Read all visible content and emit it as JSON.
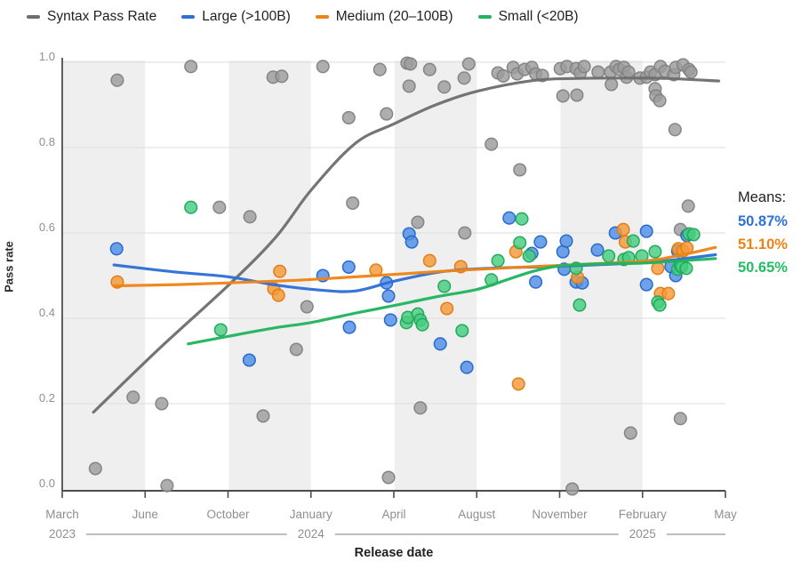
{
  "legend": {
    "items": [
      {
        "label": "Syntax Pass Rate",
        "color": "#6e6e6e"
      },
      {
        "label": "Large (>100B)",
        "color": "#2e6fd6"
      },
      {
        "label": "Medium (20–100B)",
        "color": "#ee8416"
      },
      {
        "label": "Small (<20B)",
        "color": "#21b45f"
      }
    ]
  },
  "means": {
    "title": "Means:",
    "values": [
      {
        "text": "50.87%",
        "color": "#2b72d7"
      },
      {
        "text": "51.10%",
        "color": "#f08114"
      },
      {
        "text": "50.65%",
        "color": "#22bd64"
      }
    ]
  },
  "chart_data": {
    "type": "scatter",
    "xlabel": "Release date",
    "ylabel": "Pass rate",
    "x_ticks": [
      "March",
      "June",
      "October",
      "January",
      "April",
      "August",
      "November",
      "February",
      "May"
    ],
    "x_years": [
      {
        "label": "2023",
        "tick": 0
      },
      {
        "label": "2024",
        "tick": 3
      },
      {
        "label": "2025",
        "tick": 7
      }
    ],
    "y_ticks": [
      "0.0",
      "0.2",
      "0.4",
      "0.6",
      "0.8",
      "1.0"
    ],
    "ylim": [
      0,
      1
    ],
    "x_unit_note": "x is fraction of axis span March 2023 to May 2025",
    "background_bands": "alternating light stripes between tick pairs 0-1, 2-3, 4-5, 6-7",
    "series": [
      {
        "name": "Syntax Pass Rate",
        "dot_fill": "#9c9c9c",
        "dot_stroke": "#828282",
        "line_color": "#6e6e6e",
        "points": [
          [
            0.05,
            0.048
          ],
          [
            0.083,
            0.958
          ],
          [
            0.107,
            0.215
          ],
          [
            0.15,
            0.2
          ],
          [
            0.158,
            0.008
          ],
          [
            0.194,
            0.99
          ],
          [
            0.237,
            0.66
          ],
          [
            0.283,
            0.638
          ],
          [
            0.303,
            0.171
          ],
          [
            0.318,
            0.965
          ],
          [
            0.331,
            0.967
          ],
          [
            0.353,
            0.327
          ],
          [
            0.369,
            0.427
          ],
          [
            0.393,
            0.99
          ],
          [
            0.432,
            0.87
          ],
          [
            0.438,
            0.67
          ],
          [
            0.479,
            0.983
          ],
          [
            0.489,
            0.879
          ],
          [
            0.492,
            0.027
          ],
          [
            0.52,
            0.998
          ],
          [
            0.523,
            0.944
          ],
          [
            0.525,
            0.996
          ],
          [
            0.536,
            0.625
          ],
          [
            0.54,
            0.19
          ],
          [
            0.554,
            0.983
          ],
          [
            0.576,
            0.942
          ],
          [
            0.606,
            0.963
          ],
          [
            0.607,
            0.6
          ],
          [
            0.613,
            0.996
          ],
          [
            0.647,
            0.808
          ],
          [
            0.657,
            0.975
          ],
          [
            0.665,
            0.968
          ],
          [
            0.68,
            0.988
          ],
          [
            0.686,
            0.973
          ],
          [
            0.69,
            0.748
          ],
          [
            0.697,
            0.983
          ],
          [
            0.708,
            0.988
          ],
          [
            0.714,
            0.973
          ],
          [
            0.724,
            0.969
          ],
          [
            0.751,
            0.985
          ],
          [
            0.755,
            0.921
          ],
          [
            0.761,
            0.99
          ],
          [
            0.769,
            0.0
          ],
          [
            0.775,
            0.985
          ],
          [
            0.776,
            0.923
          ],
          [
            0.781,
            0.975
          ],
          [
            0.787,
            0.99
          ],
          [
            0.808,
            0.977
          ],
          [
            0.827,
            0.977
          ],
          [
            0.828,
            0.948
          ],
          [
            0.835,
            0.99
          ],
          [
            0.84,
            0.983
          ],
          [
            0.847,
            0.988
          ],
          [
            0.851,
            0.965
          ],
          [
            0.854,
            0.977
          ],
          [
            0.857,
            0.131
          ],
          [
            0.871,
            0.963
          ],
          [
            0.881,
            0.965
          ],
          [
            0.887,
            0.977
          ],
          [
            0.894,
            0.938
          ],
          [
            0.894,
            0.971
          ],
          [
            0.895,
            0.921
          ],
          [
            0.901,
            0.91
          ],
          [
            0.902,
            0.99
          ],
          [
            0.909,
            0.979
          ],
          [
            0.922,
            0.971
          ],
          [
            0.924,
            0.842
          ],
          [
            0.925,
            0.988
          ],
          [
            0.932,
            0.608
          ],
          [
            0.932,
            0.165
          ],
          [
            0.936,
            0.994
          ],
          [
            0.944,
            0.663
          ],
          [
            0.945,
            0.983
          ],
          [
            0.948,
            0.977
          ]
        ],
        "trend": [
          [
            0.047,
            0.18
          ],
          [
            0.147,
            0.33
          ],
          [
            0.251,
            0.478
          ],
          [
            0.322,
            0.59
          ],
          [
            0.375,
            0.7
          ],
          [
            0.442,
            0.81
          ],
          [
            0.501,
            0.856
          ],
          [
            0.563,
            0.9
          ],
          [
            0.626,
            0.932
          ],
          [
            0.71,
            0.957
          ],
          [
            0.777,
            0.962
          ],
          [
            0.845,
            0.963
          ],
          [
            0.911,
            0.962
          ],
          [
            0.99,
            0.956
          ]
        ]
      },
      {
        "name": "Large (>100B)",
        "dot_fill": "#4e8fe8",
        "dot_stroke": "#2565c8",
        "line_color": "#2e6fd6",
        "points": [
          [
            0.082,
            0.563
          ],
          [
            0.282,
            0.302
          ],
          [
            0.393,
            0.5
          ],
          [
            0.432,
            0.52
          ],
          [
            0.433,
            0.379
          ],
          [
            0.489,
            0.483
          ],
          [
            0.492,
            0.452
          ],
          [
            0.495,
            0.396
          ],
          [
            0.523,
            0.598
          ],
          [
            0.527,
            0.579
          ],
          [
            0.57,
            0.34
          ],
          [
            0.61,
            0.285
          ],
          [
            0.674,
            0.635
          ],
          [
            0.708,
            0.552
          ],
          [
            0.714,
            0.485
          ],
          [
            0.721,
            0.579
          ],
          [
            0.755,
            0.556
          ],
          [
            0.757,
            0.515
          ],
          [
            0.76,
            0.581
          ],
          [
            0.775,
            0.485
          ],
          [
            0.784,
            0.483
          ],
          [
            0.807,
            0.56
          ],
          [
            0.834,
            0.6
          ],
          [
            0.881,
            0.604
          ],
          [
            0.881,
            0.479
          ],
          [
            0.918,
            0.521
          ],
          [
            0.925,
            0.5
          ],
          [
            0.928,
            0.558
          ],
          [
            0.942,
            0.594
          ]
        ],
        "trend": [
          [
            0.078,
            0.525
          ],
          [
            0.174,
            0.508
          ],
          [
            0.251,
            0.497
          ],
          [
            0.322,
            0.478
          ],
          [
            0.389,
            0.466
          ],
          [
            0.442,
            0.464
          ],
          [
            0.501,
            0.487
          ],
          [
            0.576,
            0.51
          ],
          [
            0.657,
            0.518
          ],
          [
            0.737,
            0.521
          ],
          [
            0.831,
            0.527
          ],
          [
            0.898,
            0.533
          ],
          [
            0.985,
            0.549
          ]
        ]
      },
      {
        "name": "Medium (20–100B)",
        "dot_fill": "#f59a39",
        "dot_stroke": "#e27a10",
        "line_color": "#ee8416",
        "points": [
          [
            0.083,
            0.485
          ],
          [
            0.319,
            0.469
          ],
          [
            0.326,
            0.454
          ],
          [
            0.328,
            0.51
          ],
          [
            0.473,
            0.513
          ],
          [
            0.554,
            0.535
          ],
          [
            0.58,
            0.423
          ],
          [
            0.601,
            0.521
          ],
          [
            0.684,
            0.556
          ],
          [
            0.688,
            0.246
          ],
          [
            0.777,
            0.496
          ],
          [
            0.846,
            0.608
          ],
          [
            0.849,
            0.579
          ],
          [
            0.898,
            0.517
          ],
          [
            0.902,
            0.458
          ],
          [
            0.914,
            0.458
          ],
          [
            0.929,
            0.563
          ],
          [
            0.936,
            0.558
          ],
          [
            0.942,
            0.565
          ]
        ],
        "trend": [
          [
            0.078,
            0.476
          ],
          [
            0.174,
            0.479
          ],
          [
            0.251,
            0.483
          ],
          [
            0.322,
            0.487
          ],
          [
            0.389,
            0.492
          ],
          [
            0.501,
            0.503
          ],
          [
            0.603,
            0.513
          ],
          [
            0.71,
            0.521
          ],
          [
            0.818,
            0.529
          ],
          [
            0.898,
            0.538
          ],
          [
            0.985,
            0.566
          ]
        ]
      },
      {
        "name": "Small (<20B)",
        "dot_fill": "#47cd81",
        "dot_stroke": "#1ca854",
        "line_color": "#21b45f",
        "points": [
          [
            0.194,
            0.66
          ],
          [
            0.239,
            0.373
          ],
          [
            0.519,
            0.39
          ],
          [
            0.521,
            0.402
          ],
          [
            0.536,
            0.41
          ],
          [
            0.54,
            0.396
          ],
          [
            0.543,
            0.385
          ],
          [
            0.576,
            0.475
          ],
          [
            0.603,
            0.371
          ],
          [
            0.647,
            0.49
          ],
          [
            0.657,
            0.535
          ],
          [
            0.69,
            0.577
          ],
          [
            0.693,
            0.633
          ],
          [
            0.704,
            0.546
          ],
          [
            0.775,
            0.517
          ],
          [
            0.78,
            0.431
          ],
          [
            0.824,
            0.546
          ],
          [
            0.847,
            0.538
          ],
          [
            0.854,
            0.542
          ],
          [
            0.861,
            0.581
          ],
          [
            0.874,
            0.546
          ],
          [
            0.894,
            0.556
          ],
          [
            0.898,
            0.438
          ],
          [
            0.901,
            0.431
          ],
          [
            0.928,
            0.515
          ],
          [
            0.932,
            0.525
          ],
          [
            0.934,
            0.521
          ],
          [
            0.941,
            0.517
          ],
          [
            0.945,
            0.598
          ],
          [
            0.952,
            0.596
          ]
        ],
        "trend": [
          [
            0.19,
            0.34
          ],
          [
            0.251,
            0.358
          ],
          [
            0.322,
            0.378
          ],
          [
            0.375,
            0.39
          ],
          [
            0.442,
            0.412
          ],
          [
            0.501,
            0.43
          ],
          [
            0.563,
            0.45
          ],
          [
            0.626,
            0.468
          ],
          [
            0.67,
            0.49
          ],
          [
            0.71,
            0.51
          ],
          [
            0.751,
            0.523
          ],
          [
            0.818,
            0.528
          ],
          [
            0.885,
            0.53
          ],
          [
            0.985,
            0.54
          ]
        ]
      }
    ]
  },
  "style": {
    "band_color": "#efefef",
    "grid_color": "#dcdcdc",
    "axis_color": "#4d4d4d",
    "tick_text_color": "#8f8f8f",
    "year_line_color": "#a8a8a8"
  }
}
